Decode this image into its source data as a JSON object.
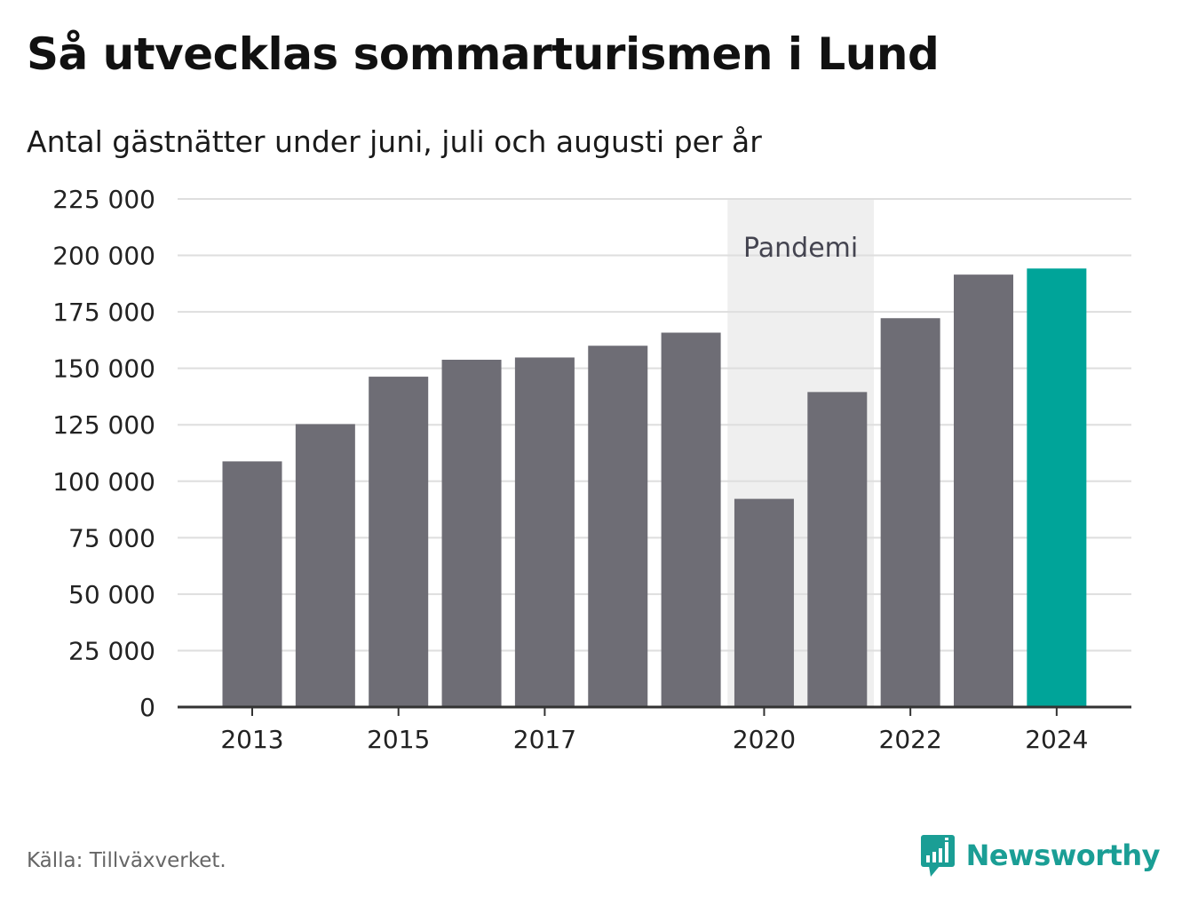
{
  "header": {
    "title": "Så utvecklas sommarturismen i Lund",
    "subtitle": "Antal gästnätter under juni, juli och augusti per år"
  },
  "footer": {
    "source": "Källa: Tillväxverket.",
    "brand_name": "Newsworthy",
    "brand_icon": "bar-chart-speech-bubble-icon"
  },
  "colors": {
    "bar": "#6e6d75",
    "highlight_bar": "#00a499",
    "pandemic_band": "#efefef",
    "grid": "#dedede",
    "axis": "#333333",
    "brand": "#1a9e95"
  },
  "chart_data": {
    "type": "bar",
    "title": "Så utvecklas sommarturismen i Lund",
    "subtitle": "Antal gästnätter under juni, juli och augusti per år",
    "xlabel": "",
    "ylabel": "",
    "categories": [
      2013,
      2014,
      2015,
      2016,
      2017,
      2018,
      2019,
      2020,
      2021,
      2022,
      2023,
      2024
    ],
    "values": [
      108800,
      125300,
      146300,
      153800,
      154800,
      160000,
      165800,
      92200,
      139500,
      172200,
      191500,
      194200
    ],
    "highlight": [
      2024
    ],
    "x_tick_labels": [
      "2013",
      "2015",
      "2017",
      "2020",
      "2022",
      "2024"
    ],
    "ylim": [
      0,
      225000
    ],
    "y_ticks": [
      0,
      25000,
      50000,
      75000,
      100000,
      125000,
      150000,
      175000,
      200000,
      225000
    ],
    "y_tick_labels": [
      "0",
      "25 000",
      "50 000",
      "75 000",
      "100 000",
      "125 000",
      "150 000",
      "175 000",
      "200 000",
      "225 000"
    ],
    "grid": true,
    "annotation": {
      "label": "Pandemi",
      "from": 2020,
      "to": 2021
    }
  }
}
